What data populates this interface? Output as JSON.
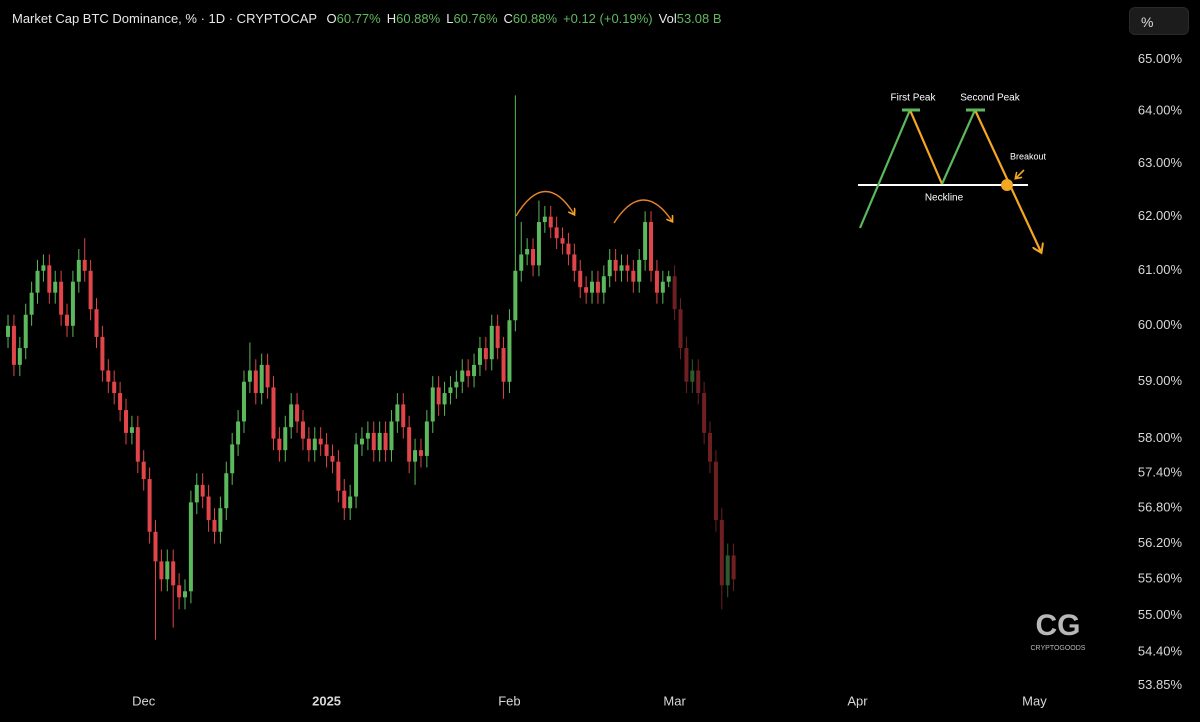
{
  "chart_data": {
    "type": "candlestick",
    "title": "Market Cap BTC Dominance, % · 1D · CRYPTOCAP",
    "ohlc_legend": [
      {
        "label": "O",
        "value": "60.77%"
      },
      {
        "label": "H",
        "value": "60.88%"
      },
      {
        "label": "L",
        "value": "60.76%"
      },
      {
        "label": "C",
        "value": "60.88%"
      },
      {
        "label": "",
        "value": "+0.12 (+0.19%)"
      },
      {
        "label": "Vol",
        "value": "53.08 B"
      }
    ],
    "scale_button": "%",
    "log_scale": true,
    "ylim": [
      53.62,
      66.17
    ],
    "yticks": [
      {
        "value": 65,
        "label": "65.00%"
      },
      {
        "value": 64,
        "label": "64.00%"
      },
      {
        "value": 63,
        "label": "63.00%"
      },
      {
        "value": 62,
        "label": "62.00%"
      },
      {
        "value": 61,
        "label": "61.00%"
      },
      {
        "value": 60,
        "label": "60.00%"
      },
      {
        "value": 59,
        "label": "59.00%"
      },
      {
        "value": 58,
        "label": "58.00%"
      },
      {
        "value": 57.4,
        "label": "57.40%"
      },
      {
        "value": 56.8,
        "label": "56.80%"
      },
      {
        "value": 56.2,
        "label": "56.20%"
      },
      {
        "value": 55.6,
        "label": "55.60%"
      },
      {
        "value": 55,
        "label": "55.00%"
      },
      {
        "value": 54.4,
        "label": "54.40%"
      },
      {
        "value": 53.85,
        "label": "53.85%"
      }
    ],
    "xlim": [
      -1.36,
      188.5
    ],
    "xticks": [
      {
        "value": 23,
        "label": "Dec"
      },
      {
        "value": 54,
        "label": "2025"
      },
      {
        "value": 85,
        "label": "Feb"
      },
      {
        "value": 113,
        "label": "Mar"
      },
      {
        "value": 144,
        "label": "Apr"
      },
      {
        "value": 174,
        "label": "May"
      }
    ],
    "series": [
      {
        "up_color": "#5cb85c",
        "down_color": "#e0454a",
        "x": [
          0,
          1,
          2,
          3,
          4,
          5,
          6,
          7,
          8,
          9,
          10,
          11,
          12,
          13,
          14,
          15,
          16,
          17,
          18,
          19,
          20,
          21,
          22,
          23,
          24,
          25,
          26,
          27,
          28,
          29,
          30,
          31,
          32,
          33,
          34,
          35,
          36,
          37,
          38,
          39,
          40,
          41,
          42,
          43,
          44,
          45,
          46,
          47,
          48,
          49,
          50,
          51,
          52,
          53,
          54,
          55,
          56,
          57,
          58,
          59,
          60,
          61,
          62,
          63,
          64,
          65,
          66,
          67,
          68,
          69,
          70,
          71,
          72,
          73,
          74,
          75,
          76,
          77,
          78,
          79,
          80,
          81,
          82,
          83,
          84,
          85,
          86,
          87,
          88,
          89,
          90,
          91,
          92,
          93,
          94,
          95,
          96,
          97,
          98,
          99,
          100,
          101,
          102,
          103,
          104,
          105,
          106,
          107,
          108,
          109,
          110,
          111,
          112
        ],
        "open": [
          59.8,
          60.0,
          59.3,
          59.6,
          60.2,
          60.6,
          61.0,
          61.1,
          60.6,
          60.8,
          60.2,
          60.0,
          60.8,
          61.2,
          61.0,
          60.3,
          59.8,
          59.2,
          59.0,
          58.8,
          58.5,
          58.1,
          58.2,
          57.6,
          57.3,
          56.4,
          55.9,
          55.6,
          55.9,
          55.5,
          55.3,
          55.4,
          56.9,
          57.2,
          57.0,
          56.6,
          56.4,
          56.8,
          57.4,
          57.9,
          58.3,
          59.0,
          59.2,
          58.8,
          59.3,
          58.9,
          58.0,
          57.8,
          58.2,
          58.6,
          58.3,
          58.0,
          57.8,
          58.0,
          57.9,
          57.7,
          57.6,
          57.1,
          56.8,
          57.0,
          57.9,
          58.0,
          58.1,
          57.8,
          58.1,
          57.8,
          58.3,
          58.6,
          58.2,
          57.6,
          57.8,
          57.7,
          58.3,
          58.9,
          58.6,
          58.8,
          58.9,
          59.0,
          59.2,
          59.1,
          59.3,
          59.6,
          59.4,
          60.0,
          59.6,
          59.0,
          60.1,
          61.0,
          61.3,
          61.4,
          61.1,
          61.9,
          62.0,
          61.8,
          61.6,
          61.5,
          61.3,
          61.0,
          60.7,
          60.6,
          60.8,
          60.6,
          60.9,
          61.2,
          61.0,
          61.1,
          61.0,
          60.8,
          61.2,
          61.9,
          61.0,
          60.6,
          60.8
        ],
        "high": [
          60.2,
          60.2,
          59.8,
          60.4,
          60.8,
          61.2,
          61.3,
          61.3,
          61.0,
          61.0,
          60.4,
          61.0,
          61.4,
          61.6,
          61.2,
          60.5,
          60.0,
          59.4,
          59.2,
          59.0,
          58.7,
          58.4,
          58.4,
          57.8,
          57.5,
          56.6,
          56.1,
          56.1,
          56.1,
          55.7,
          55.6,
          57.1,
          57.4,
          57.4,
          57.2,
          56.8,
          57.0,
          57.6,
          58.1,
          58.5,
          59.2,
          59.7,
          59.4,
          59.5,
          59.5,
          59.1,
          58.2,
          58.4,
          58.8,
          58.8,
          58.5,
          58.2,
          58.2,
          58.2,
          58.1,
          57.9,
          57.8,
          57.3,
          57.2,
          58.1,
          58.2,
          58.3,
          58.3,
          58.3,
          58.3,
          58.5,
          58.8,
          58.8,
          58.4,
          58.0,
          58.0,
          58.5,
          59.1,
          59.1,
          59.0,
          59.1,
          59.2,
          59.4,
          59.4,
          59.5,
          59.8,
          59.8,
          60.2,
          60.2,
          59.8,
          60.3,
          64.3,
          61.9,
          61.6,
          61.6,
          62.3,
          62.2,
          62.2,
          62.0,
          61.8,
          61.7,
          61.5,
          61.2,
          60.9,
          61.0,
          61.0,
          61.1,
          61.4,
          61.4,
          61.3,
          61.3,
          61.2,
          61.4,
          62.1,
          62.1,
          61.2,
          61.0,
          61.0
        ],
        "low": [
          59.6,
          59.1,
          59.1,
          59.4,
          60.0,
          60.4,
          60.8,
          60.4,
          60.4,
          60.0,
          59.8,
          59.8,
          60.6,
          60.8,
          60.1,
          59.6,
          59.0,
          58.8,
          58.6,
          58.3,
          57.9,
          57.9,
          57.4,
          57.1,
          56.2,
          54.6,
          55.4,
          55.4,
          54.8,
          55.1,
          55.1,
          55.2,
          56.7,
          56.8,
          56.4,
          56.2,
          56.2,
          56.6,
          57.2,
          57.7,
          58.1,
          58.8,
          58.6,
          58.6,
          58.7,
          57.8,
          57.6,
          57.6,
          58.0,
          58.1,
          57.8,
          57.6,
          57.6,
          57.7,
          57.5,
          57.4,
          56.9,
          56.6,
          56.6,
          56.8,
          57.7,
          57.8,
          57.6,
          57.6,
          57.6,
          57.6,
          58.1,
          58.0,
          57.4,
          57.2,
          57.5,
          57.5,
          58.1,
          58.4,
          58.4,
          58.6,
          58.7,
          58.8,
          58.9,
          58.9,
          59.1,
          59.2,
          59.2,
          59.4,
          58.7,
          58.8,
          59.9,
          60.8,
          61.1,
          60.9,
          60.9,
          61.7,
          61.6,
          61.4,
          61.3,
          61.1,
          60.8,
          60.5,
          60.4,
          60.4,
          60.4,
          60.4,
          60.7,
          60.8,
          60.8,
          60.8,
          60.6,
          60.6,
          61.0,
          60.8,
          60.4,
          60.4,
          60.7
        ],
        "close": [
          60.0,
          59.3,
          59.6,
          60.2,
          60.6,
          61.0,
          61.1,
          60.6,
          60.8,
          60.2,
          60.0,
          60.8,
          61.2,
          61.0,
          60.3,
          59.8,
          59.2,
          59.0,
          58.8,
          58.5,
          58.1,
          58.2,
          57.6,
          57.3,
          56.4,
          55.9,
          55.6,
          55.9,
          55.5,
          55.3,
          55.4,
          56.9,
          57.2,
          57.0,
          56.6,
          56.4,
          56.8,
          57.4,
          57.9,
          58.3,
          59.0,
          59.2,
          58.8,
          59.3,
          58.9,
          58.0,
          57.8,
          58.2,
          58.6,
          58.3,
          58.0,
          57.8,
          58.0,
          57.9,
          57.7,
          57.6,
          57.1,
          56.8,
          57.0,
          57.9,
          58.0,
          58.1,
          57.8,
          58.1,
          57.8,
          58.3,
          58.6,
          58.2,
          57.6,
          57.8,
          57.7,
          58.3,
          58.9,
          58.6,
          58.8,
          58.9,
          59.0,
          59.2,
          59.1,
          59.3,
          59.6,
          59.4,
          60.0,
          59.6,
          59.0,
          60.1,
          61.0,
          61.3,
          61.4,
          61.1,
          61.9,
          62.0,
          61.8,
          61.6,
          61.5,
          61.3,
          61.0,
          60.7,
          60.6,
          60.8,
          60.6,
          60.9,
          61.2,
          61.0,
          61.1,
          61.0,
          60.8,
          61.2,
          61.9,
          61.0,
          60.6,
          60.8,
          60.9
        ]
      },
      {
        "up_color": "#2f5a2f",
        "down_color": "#6e1f22",
        "x": [
          113,
          114,
          115,
          116,
          117,
          118,
          119,
          120,
          121,
          122,
          123
        ],
        "open": [
          60.9,
          60.3,
          59.6,
          59.0,
          59.2,
          58.8,
          58.1,
          57.6,
          56.6,
          55.5,
          56.0
        ],
        "high": [
          61.1,
          60.5,
          59.8,
          59.4,
          59.4,
          59.0,
          58.3,
          57.8,
          56.8,
          56.2,
          56.2
        ],
        "low": [
          60.1,
          59.4,
          58.8,
          58.8,
          58.6,
          57.9,
          57.4,
          56.4,
          55.1,
          55.3,
          55.4
        ],
        "close": [
          60.3,
          59.6,
          59.0,
          59.2,
          58.8,
          58.1,
          57.6,
          56.6,
          55.5,
          56.0,
          55.6
        ]
      }
    ],
    "annotations": {
      "first_peak": "First Peak",
      "second_peak": "Second Peak",
      "breakout": "Breakout",
      "neckline": "Neckline"
    },
    "logo": {
      "mark": "CG",
      "name": "CRYPTOGOODS"
    }
  }
}
